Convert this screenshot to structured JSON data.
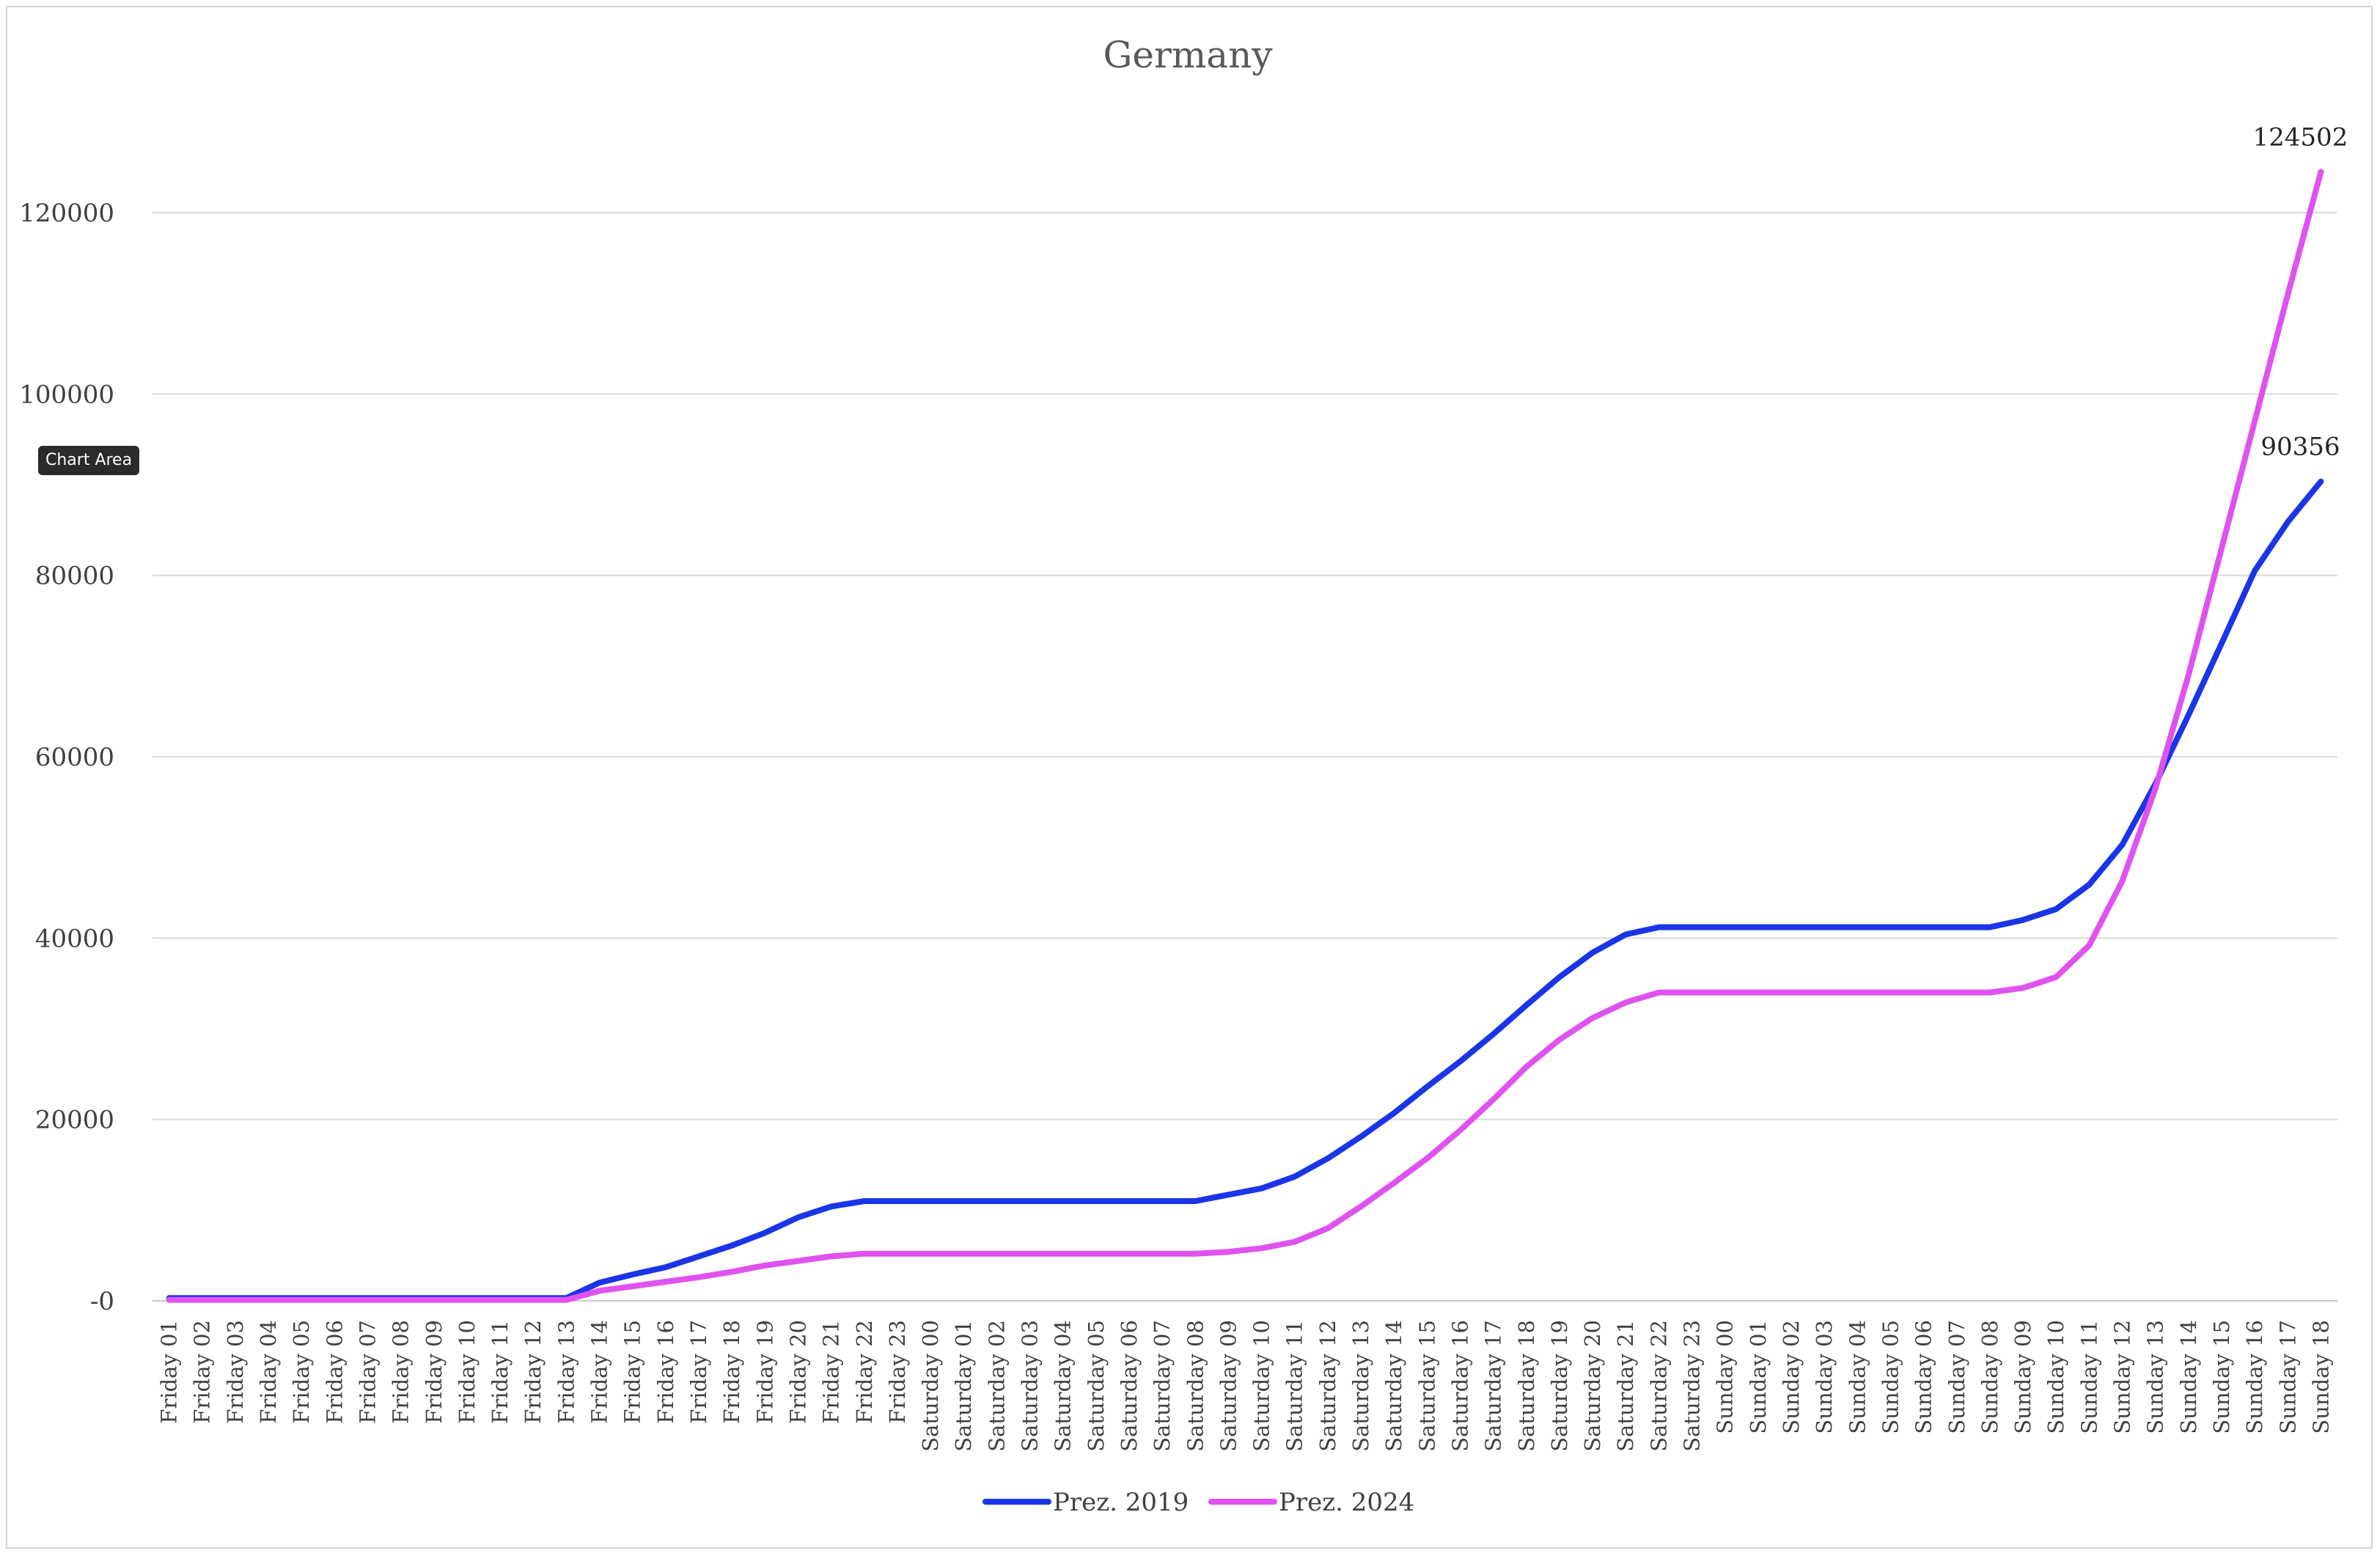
{
  "chart_data": {
    "type": "line",
    "title": "Germany",
    "xlabel": "",
    "ylabel": "",
    "ylim": [
      0,
      130000
    ],
    "yticks": [
      0,
      20000,
      40000,
      60000,
      80000,
      100000,
      120000
    ],
    "ytick_labels": [
      "-0",
      "20000",
      "40000",
      "60000",
      "80000",
      "100000",
      "120000"
    ],
    "grid": true,
    "legend": "bottom",
    "categories": [
      "Friday 01",
      "Friday 02",
      "Friday 03",
      "Friday 04",
      "Friday 05",
      "Friday 06",
      "Friday 07",
      "Friday 08",
      "Friday 09",
      "Friday 10",
      "Friday 11",
      "Friday 12",
      "Friday 13",
      "Friday 14",
      "Friday 15",
      "Friday 16",
      "Friday 17",
      "Friday 18",
      "Friday 19",
      "Friday 20",
      "Friday 21",
      "Friday 22",
      "Friday 23",
      "Saturday 00",
      "Saturday 01",
      "Saturday 02",
      "Saturday 03",
      "Saturday 04",
      "Saturday 05",
      "Saturday 06",
      "Saturday 07",
      "Saturday 08",
      "Saturday 09",
      "Saturday 10",
      "Saturday 11",
      "Saturday 12",
      "Saturday 13",
      "Saturday 14",
      "Saturday 15",
      "Saturday 16",
      "Saturday 17",
      "Saturday 18",
      "Saturday 19",
      "Saturday 20",
      "Saturday 21",
      "Saturday 22",
      "Saturday 23",
      "Sunday 00",
      "Sunday 01",
      "Sunday 02",
      "Sunday 03",
      "Sunday 04",
      "Sunday 05",
      "Sunday 06",
      "Sunday 07",
      "Sunday 08",
      "Sunday 09",
      "Sunday 10",
      "Sunday 11",
      "Sunday 12",
      "Sunday 13",
      "Sunday 14",
      "Sunday 15",
      "Sunday 16",
      "Sunday 17",
      "Sunday 18"
    ],
    "series": [
      {
        "name": "Prez. 2019",
        "color": "#1a35e8",
        "values": [
          300,
          300,
          300,
          300,
          300,
          300,
          300,
          300,
          300,
          300,
          300,
          300,
          300,
          2000,
          2900,
          3700,
          4900,
          6100,
          7500,
          9200,
          10400,
          11000,
          11000,
          11000,
          11000,
          11000,
          11000,
          11000,
          11000,
          11000,
          11000,
          11000,
          11700,
          12400,
          13700,
          15700,
          18100,
          20700,
          23600,
          26400,
          29400,
          32600,
          35700,
          38400,
          40400,
          41200,
          41200,
          41200,
          41200,
          41200,
          41200,
          41200,
          41200,
          41200,
          41200,
          41200,
          42000,
          43200,
          45900,
          50300,
          57000,
          64600,
          72500,
          80500,
          85900,
          90356
        ],
        "end_label": "90356"
      },
      {
        "name": "Prez. 2024",
        "color": "#e052f0",
        "values": [
          100,
          100,
          100,
          100,
          100,
          100,
          100,
          100,
          100,
          100,
          100,
          100,
          100,
          1100,
          1600,
          2100,
          2600,
          3200,
          3900,
          4400,
          4900,
          5200,
          5200,
          5200,
          5200,
          5200,
          5200,
          5200,
          5200,
          5200,
          5200,
          5200,
          5400,
          5800,
          6500,
          8000,
          10400,
          13000,
          15700,
          18800,
          22200,
          25800,
          28800,
          31200,
          32900,
          34000,
          34000,
          34000,
          34000,
          34000,
          34000,
          34000,
          34000,
          34000,
          34000,
          34000,
          34500,
          35700,
          39200,
          46300,
          56500,
          69000,
          83000,
          97000,
          111000,
          124502
        ],
        "end_label": "124502"
      }
    ]
  },
  "tooltip": {
    "label": "Chart Area"
  }
}
